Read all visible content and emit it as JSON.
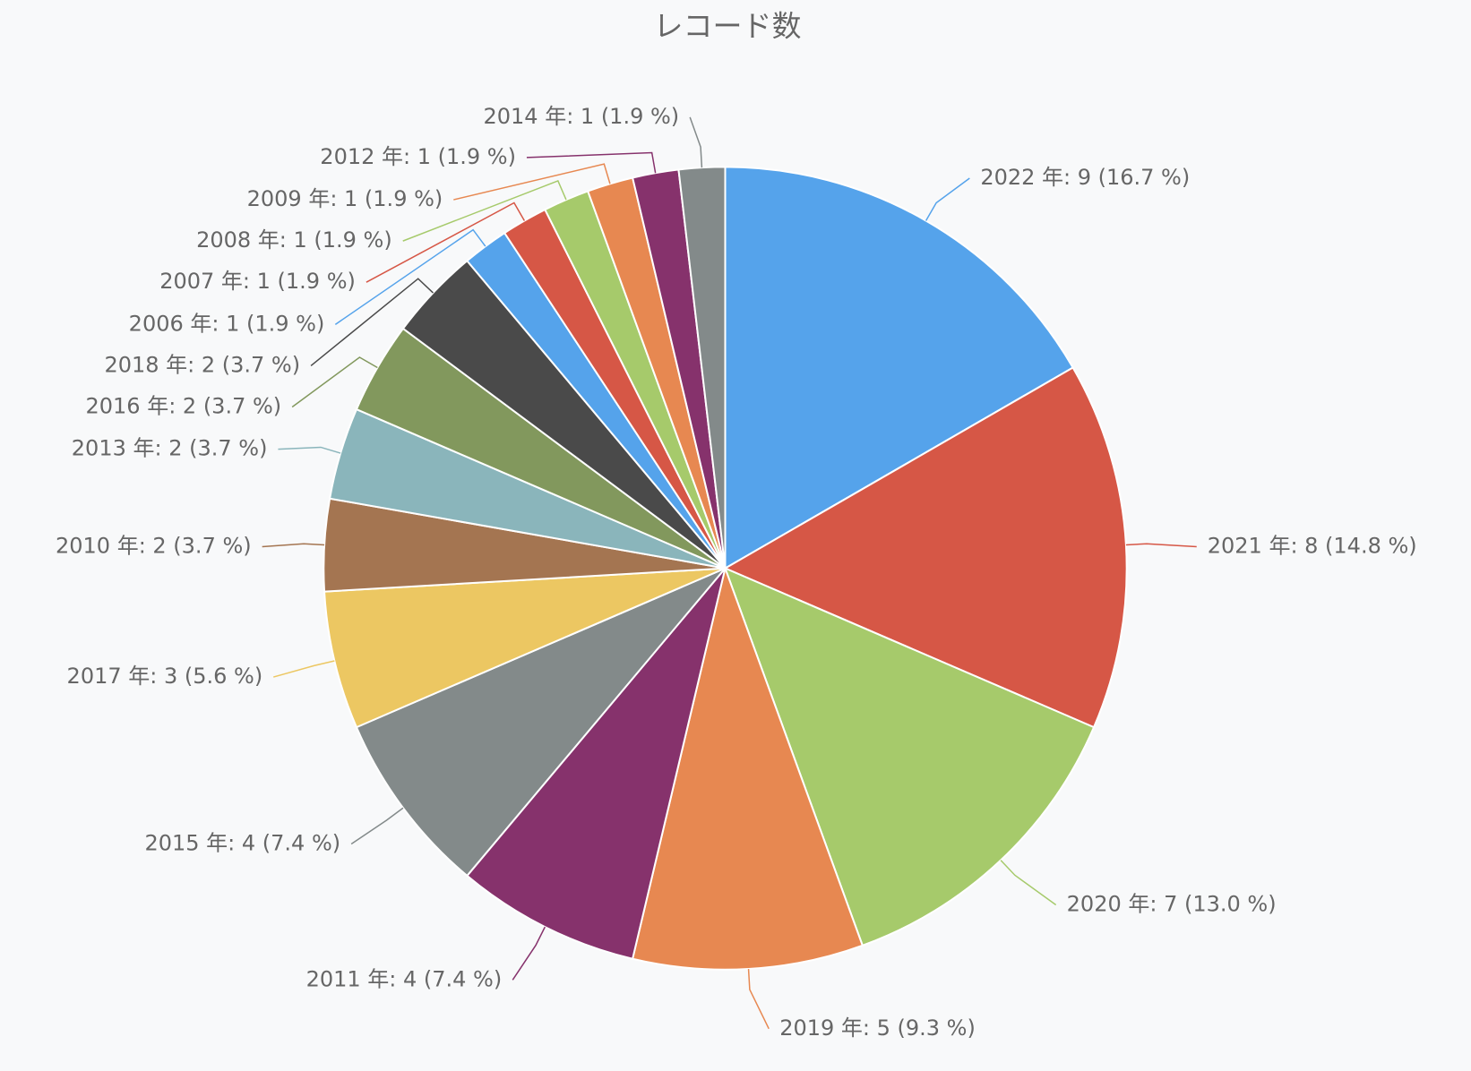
{
  "chart_data": {
    "type": "pie",
    "title": "レコード数",
    "categories": [
      "2022 年: 9 (16.7 %)",
      "2021 年: 8 (14.8 %)",
      "2020 年: 7 (13.0 %)",
      "2019 年: 5 (9.3 %)",
      "2011 年: 4 (7.4 %)",
      "2015 年: 4 (7.4 %)",
      "2017 年: 3 (5.6 %)",
      "2010 年: 2 (3.7 %)",
      "2013 年: 2 (3.7 %)",
      "2016 年: 2 (3.7 %)",
      "2018 年: 2 (3.7 %)",
      "2006 年: 1 (1.9 %)",
      "2007 年: 1 (1.9 %)",
      "2008 年: 1 (1.9 %)",
      "2009 年: 1 (1.9 %)",
      "2012 年: 1 (1.9 %)",
      "2014 年: 1 (1.9 %)"
    ],
    "values": [
      9,
      8,
      7,
      5,
      4,
      4,
      3,
      2,
      2,
      2,
      2,
      1,
      1,
      1,
      1,
      1,
      1
    ],
    "colors": [
      "#55a3eb",
      "#d65746",
      "#a6ca6b",
      "#e78851",
      "#86326c",
      "#838a8a",
      "#ecc762",
      "#a47551",
      "#8ab5bb",
      "#82985d",
      "#4a4a4a",
      "#55a3eb",
      "#d65746",
      "#a6ca6b",
      "#e78851",
      "#86326c",
      "#838a8a"
    ]
  }
}
